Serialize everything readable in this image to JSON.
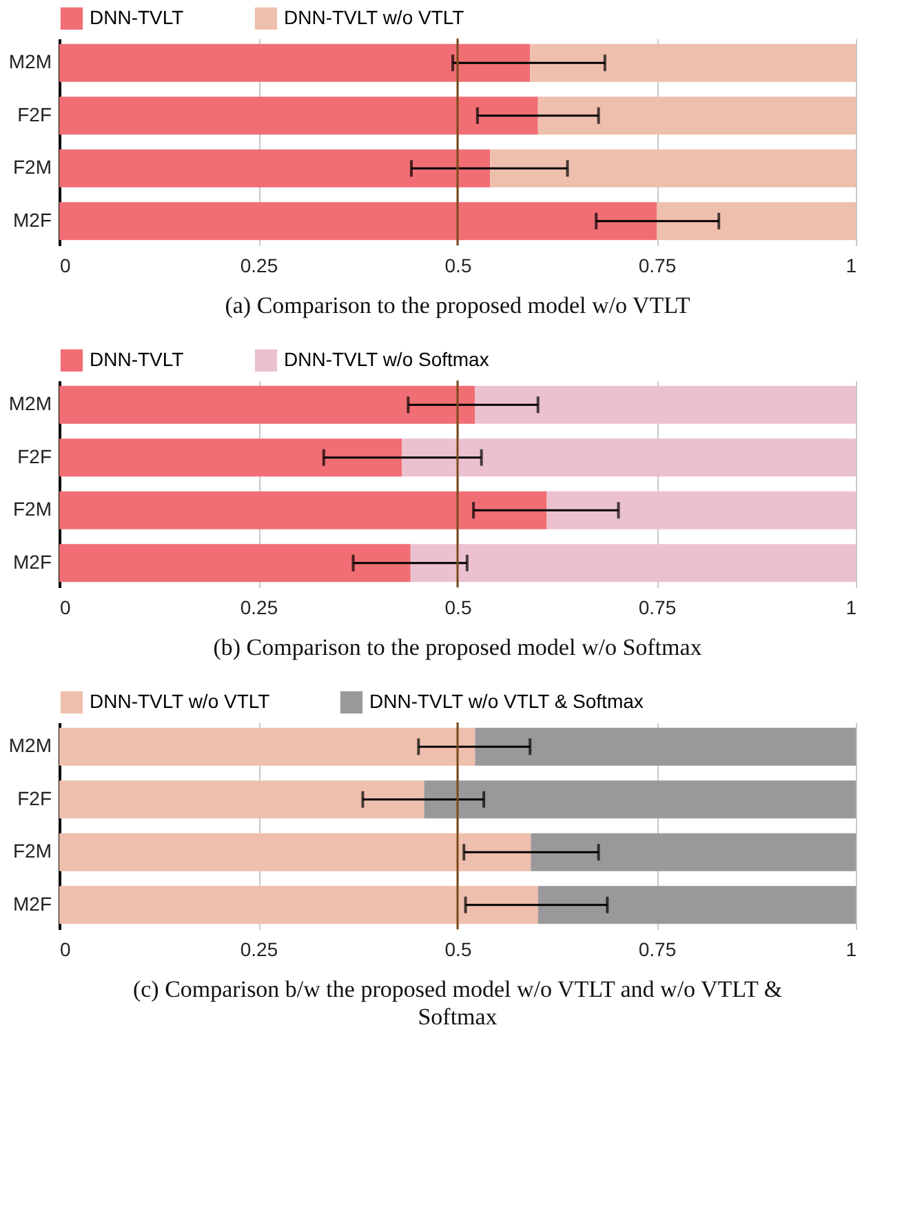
{
  "chart_data": [
    {
      "type": "bar",
      "orientation": "horizontal",
      "stacked": true,
      "title": "(a) Comparison to the proposed model w/o VTLT",
      "categories": [
        "M2M",
        "F2F",
        "F2M",
        "M2F"
      ],
      "series": [
        {
          "name": "DNN-TVLT",
          "color": "#f06e74",
          "values": [
            0.591,
            0.601,
            0.541,
            0.75
          ],
          "errors": [
            [
              0.494,
              0.685
            ],
            [
              0.525,
              0.677
            ],
            [
              0.442,
              0.638
            ],
            [
              0.674,
              0.828
            ]
          ]
        },
        {
          "name": "DNN-TVLT w/o VTLT",
          "color": "#efbfad",
          "values": [
            0.409,
            0.399,
            0.459,
            0.25
          ]
        }
      ],
      "xlim": [
        0,
        1
      ],
      "xticks": [
        0,
        0.25,
        0.5,
        0.75,
        1
      ],
      "grid": "x",
      "legend": "top",
      "ref_lines": [
        {
          "axis": "x",
          "value": 0.5,
          "color": "#7a4a1a"
        }
      ]
    },
    {
      "type": "bar",
      "orientation": "horizontal",
      "stacked": true,
      "title": "(b) Comparison to the proposed model w/o Softmax",
      "categories": [
        "M2M",
        "F2F",
        "F2M",
        "M2F"
      ],
      "series": [
        {
          "name": "DNN-TVLT",
          "color": "#f06e74",
          "values": [
            0.522,
            0.43,
            0.612,
            0.441
          ],
          "errors": [
            [
              0.438,
              0.601
            ],
            [
              0.332,
              0.53
            ],
            [
              0.52,
              0.702
            ],
            [
              0.369,
              0.512
            ]
          ]
        },
        {
          "name": "DNN-TVLT w/o Softmax",
          "color": "#ecc1cf",
          "values": [
            0.478,
            0.57,
            0.388,
            0.559
          ]
        }
      ],
      "xlim": [
        0,
        1
      ],
      "xticks": [
        0,
        0.25,
        0.5,
        0.75,
        1
      ],
      "grid": "x",
      "legend": "top",
      "ref_lines": [
        {
          "axis": "x",
          "value": 0.5,
          "color": "#7a4a1a"
        }
      ]
    },
    {
      "type": "bar",
      "orientation": "horizontal",
      "stacked": true,
      "title": "(c) Comparison b/w the proposed model w/o VTLT and w/o VTLT & Softmax",
      "categories": [
        "M2M",
        "F2F",
        "F2M",
        "M2F"
      ],
      "series": [
        {
          "name": "DNN-TVLT w/o VTLT",
          "color": "#efbfad",
          "values": [
            0.522,
            0.458,
            0.592,
            0.601
          ],
          "errors": [
            [
              0.451,
              0.591
            ],
            [
              0.381,
              0.533
            ],
            [
              0.508,
              0.677
            ],
            [
              0.51,
              0.688
            ]
          ]
        },
        {
          "name": "DNN-TVLT w/o VTLT & Softmax",
          "color": "#9a989b",
          "values": [
            0.478,
            0.542,
            0.408,
            0.399
          ]
        }
      ],
      "xlim": [
        0,
        1
      ],
      "xticks": [
        0,
        0.25,
        0.5,
        0.75,
        1
      ],
      "grid": "x",
      "legend": "top",
      "ref_lines": [
        {
          "axis": "x",
          "value": 0.5,
          "color": "#7a4a1a"
        }
      ]
    }
  ]
}
